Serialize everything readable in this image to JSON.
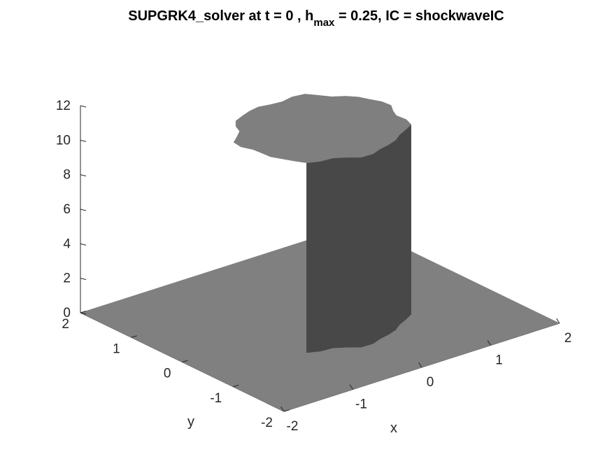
{
  "chart_data": {
    "type": "surface",
    "title": {
      "prefix": "SUPGRK4_solver at t = 0 , h",
      "subscript": "max",
      "suffix": " = 0.25, IC = shockwaveIC"
    },
    "xlabel": "x",
    "ylabel": "y",
    "zlabel": "",
    "xlim": [
      -2,
      2
    ],
    "ylim": [
      -2,
      2
    ],
    "zlim": [
      0,
      12
    ],
    "x_ticks": [
      "-2",
      "-1",
      "0",
      "1",
      "2"
    ],
    "y_ticks": [
      "-2",
      "-1",
      "0",
      "1",
      "2"
    ],
    "z_ticks": [
      "0",
      "2",
      "4",
      "6",
      "8",
      "10",
      "12"
    ],
    "grid": false,
    "colormap": "gray",
    "surface": {
      "base_level": 0,
      "plateau_level": 11,
      "plateau_shape": "disk",
      "plateau_center": [
        0,
        0
      ],
      "plateau_radius": 1
    }
  },
  "colors": {
    "background": "#ffffff",
    "axis": "#262626",
    "base_plane": "#808080",
    "top_face": "#7f7f7f",
    "wall_dark": "#484848",
    "wall_mid": "#565656",
    "wall_light": "#a8a8a8"
  }
}
